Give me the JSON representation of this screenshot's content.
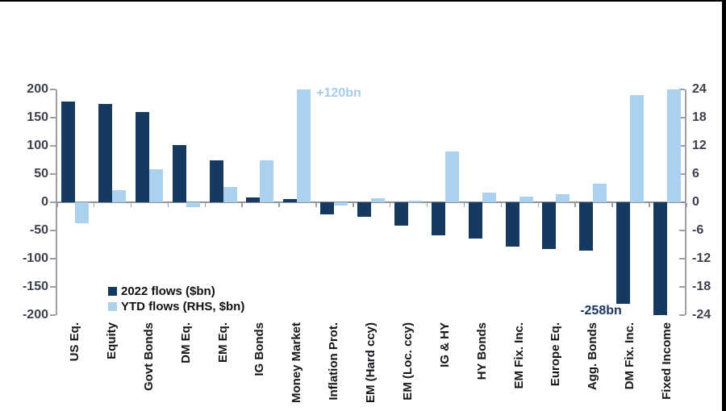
{
  "window": {
    "background": "#ffffff",
    "frame_border_color": "#000000"
  },
  "styles": {
    "axis_text_color": "#3d414e",
    "category_text_color": "#15151a",
    "axis_line_color": "#9aa0a5",
    "navy": "#15395f",
    "light_blue": "#aad2ee"
  },
  "chart_data": {
    "type": "bar",
    "title": "",
    "xlabel": "",
    "ylabel_left": "",
    "ylabel_right": "",
    "grid": false,
    "categories": [
      "US Eq.",
      "Equity",
      "Govt Bonds",
      "DM Eq.",
      "EM Eq.",
      "IG Bonds",
      "Money Market",
      "Inflation Prot.",
      "EM (Hard ccy)",
      "EM (Loc. ccy)",
      "IG & HY",
      "HY Bonds",
      "EM Fix. Inc.",
      "Europe Eq.",
      "Agg. Bonds",
      "DM Fix. Inc.",
      "Fixed Income"
    ],
    "series": [
      {
        "name": "2022 flows ($bn)",
        "axis": "left",
        "color": "#15395f",
        "values": [
          178,
          175,
          160,
          102,
          74,
          8,
          6,
          -22,
          -25,
          -41,
          -58,
          -64,
          -79,
          -83,
          -86,
          -180,
          -200
        ]
      },
      {
        "name": "YTD flows (RHS, $bn)",
        "axis": "right",
        "color": "#aad2ee",
        "values": [
          -4.5,
          2.5,
          7,
          -1,
          3.2,
          9,
          24,
          -0.7,
          0.9,
          0.4,
          10.8,
          2,
          1.2,
          1.7,
          4,
          22.8,
          24
        ]
      }
    ],
    "left_axis": {
      "min": -200,
      "max": 200,
      "ticks": [
        200,
        150,
        100,
        50,
        0,
        -50,
        -100,
        -150,
        -200
      ]
    },
    "right_axis": {
      "min": -24,
      "max": 24,
      "ticks": [
        24,
        18,
        12,
        6,
        0,
        -6,
        -12,
        -18,
        -24
      ]
    },
    "legend": {
      "position": "inside-bottom-left",
      "items": [
        {
          "label": "2022 flows ($bn)",
          "color": "#15395f"
        },
        {
          "label": "YTD flows (RHS, $bn)",
          "color": "#aad2ee"
        }
      ]
    },
    "annotations": [
      {
        "text": "+120bn",
        "color": "#a5cdeb",
        "anchor_category": "Money Market",
        "anchor_series": 1,
        "placement": "right-of-bar-top"
      },
      {
        "text": "-258bn",
        "color": "#16365c",
        "anchor_category": "DM Fix. Inc.",
        "anchor_series": 0,
        "placement": "below-bar"
      }
    ],
    "notes": "Money Market and Fixed Income YTD bars are clipped at the right-axis top (24); the DM Fix. Inc. 2022 bar is drawn truncated with its actual value (-258bn) annotated; the Fixed Income 2022 bar is clipped at the left-axis bottom (-200)."
  }
}
